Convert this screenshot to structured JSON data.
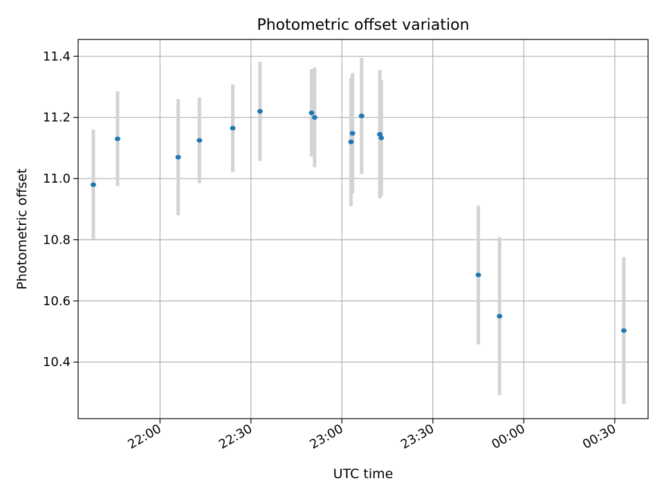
{
  "chart_data": {
    "type": "scatter",
    "title": "Photometric offset variation",
    "xlabel": "UTC time",
    "ylabel": "Photometric offset",
    "x_axis_type": "time",
    "xlim": [
      "21:33",
      "00:41"
    ],
    "ylim": [
      10.215,
      11.455
    ],
    "grid": true,
    "x_ticks": [
      "22:00",
      "22:30",
      "23:00",
      "23:30",
      "00:00",
      "00:30"
    ],
    "y_ticks": [
      "10.4",
      "10.6",
      "10.8",
      "11.0",
      "11.2",
      "11.4"
    ],
    "marker_color": "#1f77b4",
    "errorbar_color": "#d3d3d3",
    "points": [
      {
        "x": "21:38",
        "y": 10.98,
        "yerr": 0.18
      },
      {
        "x": "21:46",
        "y": 11.13,
        "yerr": 0.155
      },
      {
        "x": "22:06",
        "y": 11.07,
        "yerr": 0.19
      },
      {
        "x": "22:13",
        "y": 11.125,
        "yerr": 0.14
      },
      {
        "x": "22:24",
        "y": 11.165,
        "yerr": 0.143
      },
      {
        "x": "22:33",
        "y": 11.22,
        "yerr": 0.162
      },
      {
        "x": "22:50",
        "y": 11.215,
        "yerr": 0.143
      },
      {
        "x": "22:51",
        "y": 11.2,
        "yerr": 0.163
      },
      {
        "x": "23:03",
        "y": 11.12,
        "yerr": 0.21
      },
      {
        "x": "23:03.5",
        "y": 11.148,
        "yerr": 0.197
      },
      {
        "x": "23:06.5",
        "y": 11.205,
        "yerr": 0.19
      },
      {
        "x": "23:12.5",
        "y": 11.145,
        "yerr": 0.21
      },
      {
        "x": "23:13",
        "y": 11.133,
        "yerr": 0.19
      },
      {
        "x": "23:45",
        "y": 10.685,
        "yerr": 0.227
      },
      {
        "x": "23:52",
        "y": 10.55,
        "yerr": 0.258
      },
      {
        "x": "00:33",
        "y": 10.503,
        "yerr": 0.24
      }
    ]
  }
}
